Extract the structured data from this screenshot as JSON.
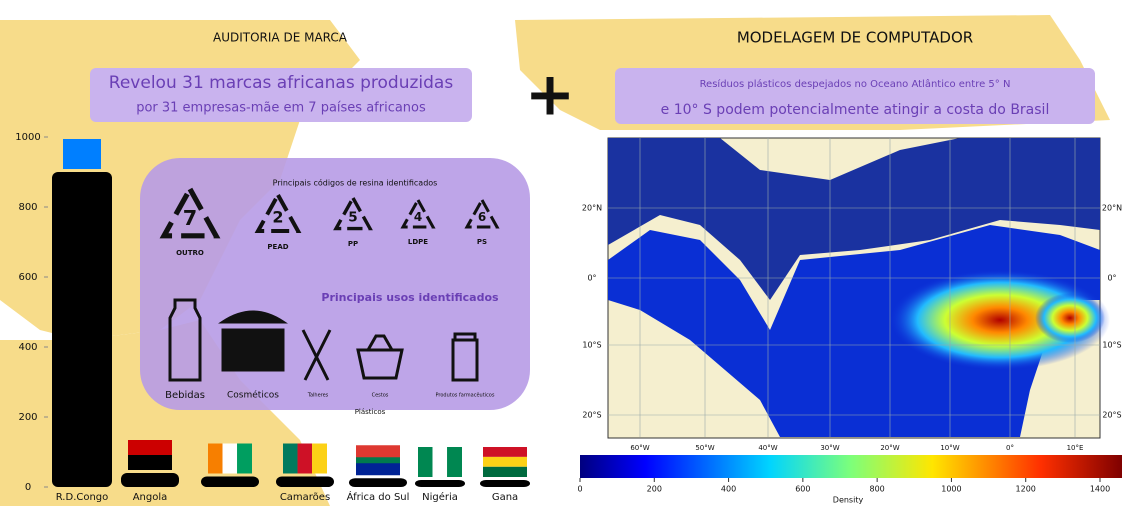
{
  "left": {
    "title": "AUDITORIA DE MARCA",
    "headline": [
      "Revelou 31 marcas africanas produzidas",
      "por 31 empresas-mãe em 7 países africanos"
    ],
    "codes_title": "Principais códigos de resina identificados",
    "codes": [
      {
        "number": "7",
        "label": "OUTRO"
      },
      {
        "number": "2",
        "label": "PEAD"
      },
      {
        "number": "5",
        "label": "PP"
      },
      {
        "number": "4",
        "label": "LDPE"
      },
      {
        "number": "6",
        "label": "PS"
      }
    ],
    "uses_title": "Principais usos identificados",
    "uses": [
      "Bebidas",
      "Cosméticos",
      "Talheres",
      "Cestos",
      "Produtos farmacêuticos"
    ],
    "uses_footer": "Plásticos"
  },
  "chart_data": {
    "type": "bar",
    "categories": [
      "R.D.Congo",
      "Angola",
      null,
      "Camarões",
      "África do Sul",
      "Nigéria",
      "Gana"
    ],
    "values": [
      900,
      40,
      30,
      30,
      25,
      20,
      20
    ],
    "color": "#000000",
    "ylim": [
      0,
      1000
    ],
    "yticks": [
      0,
      200,
      400,
      600,
      800,
      1000
    ]
  },
  "right": {
    "title": "MODELAGEM DE COMPUTADOR",
    "headline": [
      "Resíduos plásticos despejados no Oceano Atlântico entre 5° N",
      "e 10° S podem potencialmente atingir a costa do Brasil"
    ],
    "lat_ticks": [
      "20°N",
      "0°",
      "10°S",
      "20°S"
    ],
    "lon_ticks": [
      "60°W",
      "50°W",
      "40°W",
      "30°W",
      "20°W",
      "10°W",
      "0°",
      "10°E"
    ],
    "colorbar": {
      "label": "Density",
      "range": [
        0,
        1400
      ],
      "ticks": [
        0,
        200,
        400,
        600,
        800,
        1000,
        1200,
        1400
      ]
    }
  }
}
